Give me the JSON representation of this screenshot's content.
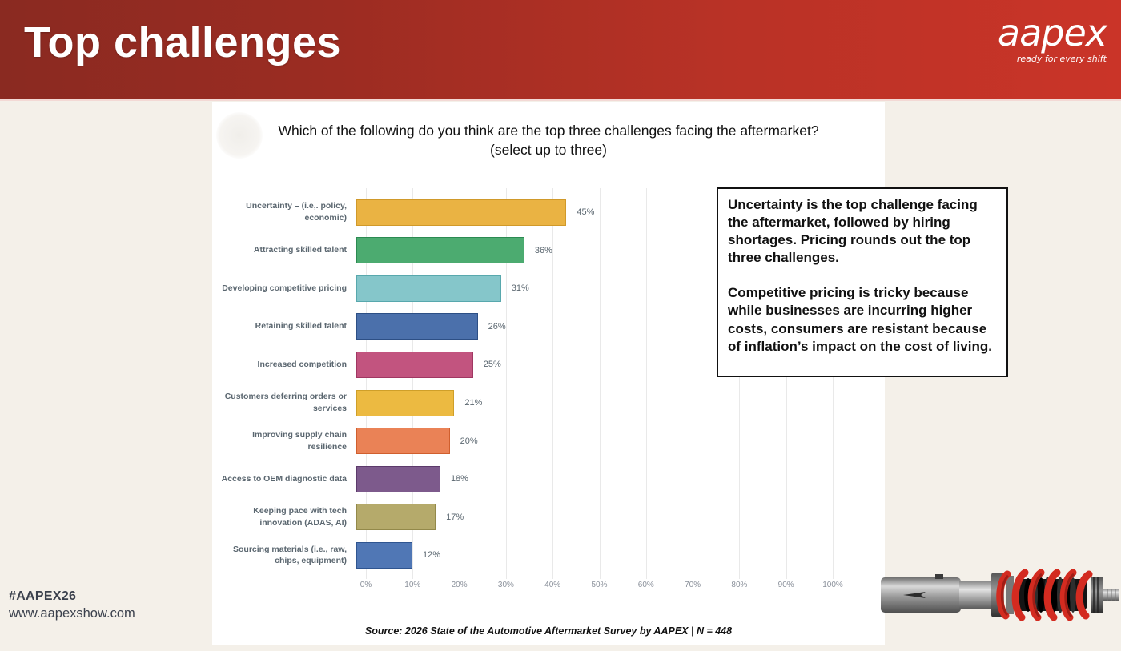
{
  "header": {
    "title": "Top challenges",
    "logo": {
      "wordmark": "aapex",
      "tagline": "ready for every shift"
    }
  },
  "panel": {
    "question_line1": "Which of the following do you think are the top three challenges facing the aftermarket?",
    "question_line2": "(select up to three)",
    "source": "Source: 2026 State of the Automotive Aftermarket Survey by AAPEX  | N = 448"
  },
  "chart_data": {
    "type": "bar",
    "orientation": "horizontal",
    "title": "Which of the following do you think are the top three challenges facing the aftermarket? (select up to three)",
    "categories": [
      "Uncertainty – (i.e,. policy, economic)",
      "Attracting skilled talent",
      "Developing competitive pricing",
      "Retaining skilled talent",
      "Increased competition",
      "Customers deferring orders or services",
      "Improving supply chain resilience",
      "Access to OEM diagnostic data",
      "Keeping pace with tech innovation (ADAS, AI)",
      "Sourcing materials (i.e., raw, chips, equipment)"
    ],
    "values": [
      45,
      36,
      31,
      26,
      25,
      21,
      20,
      18,
      17,
      12
    ],
    "value_labels": [
      "45%",
      "36%",
      "31%",
      "26%",
      "25%",
      "21%",
      "20%",
      "18%",
      "17%",
      "12%"
    ],
    "bar_colors": [
      "#eab343",
      "#4cab70",
      "#85c6ca",
      "#4b70ab",
      "#c2547f",
      "#ecba41",
      "#ea8256",
      "#7d5a8c",
      "#b5aa6b",
      "#5077b5"
    ],
    "bar_border_colors": [
      "#d0992a",
      "#2c8a52",
      "#58a8ad",
      "#2d4f85",
      "#a03762",
      "#cf9f29",
      "#d05f2e",
      "#5c3a6b",
      "#93894a",
      "#2f5590"
    ],
    "x_ticks": [
      "0%",
      "10%",
      "20%",
      "30%",
      "40%",
      "50%",
      "60%",
      "70%",
      "80%",
      "90%",
      "100%"
    ],
    "xlim": [
      0,
      100
    ],
    "grid": true,
    "legend": "none"
  },
  "callout": {
    "paragraph1": "Uncertainty is the top challenge facing the aftermarket, followed by hiring shortages.  Pricing rounds out the top three challenges.",
    "paragraph2": "Competitive pricing is tricky because while businesses are incurring higher costs, consumers are resistant because of inflation’s impact on the cost of living."
  },
  "footer": {
    "hashtag": "#AAPEX26",
    "website": "www.aapexshow.com"
  },
  "decoration": {
    "image_name": "coilover-shock-absorber"
  },
  "colors": {
    "header_gradient_start": "#8a2a21",
    "header_gradient_end": "#ca3428",
    "page_background": "#f4f0e9",
    "panel_background": "#ffffff",
    "label_gray": "#5b6770",
    "tick_gray": "#8b919b",
    "footer_text": "#3b414d",
    "spring_red": "#d32b20"
  }
}
